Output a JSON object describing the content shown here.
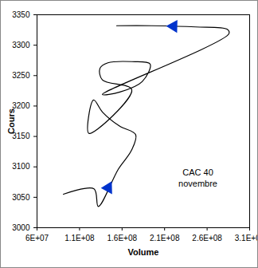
{
  "chart_data": {
    "type": "line",
    "x_label": "Volume",
    "y_label": "Cours",
    "annotation": "CAC 40\nnovembre",
    "color": "#000000",
    "marker": "arrow",
    "marker_color": "#0033cc",
    "x": [
      91000000,
      127000000,
      132000000,
      155500000,
      171000000,
      176000000,
      157000000,
      137000000,
      126500000,
      121000000,
      171400000,
      136800000,
      134000000,
      143300000,
      171400000,
      193000000,
      183600000,
      157400000,
      136800000,
      285700000,
      283800000,
      246300000,
      194800000,
      153600000
    ],
    "values": [
      3055,
      3064,
      3035,
      3096,
      3127,
      3153,
      3167,
      3190,
      3210,
      3155,
      3227,
      3243,
      3262,
      3271,
      3273,
      3269,
      3240,
      3223,
      3219,
      3319,
      3326,
      3330,
      3332,
      3332
    ],
    "xlim": [
      60000000,
      310000000
    ],
    "xticks": [
      {
        "value": 60000000,
        "label": "6E+07"
      },
      {
        "value": 110000000,
        "label": "1.1E+08"
      },
      {
        "value": 160000000,
        "label": "1.6E+08"
      },
      {
        "value": 210000000,
        "label": "2.1E+08"
      },
      {
        "value": 260000000,
        "label": "2.6E+08"
      },
      {
        "value": 310000000,
        "label": "3.1E+08"
      }
    ],
    "ylim": [
      3000,
      3350
    ],
    "yticks": [
      3000,
      3050,
      3100,
      3150,
      3200,
      3250,
      3300,
      3350
    ],
    "grid": false
  }
}
